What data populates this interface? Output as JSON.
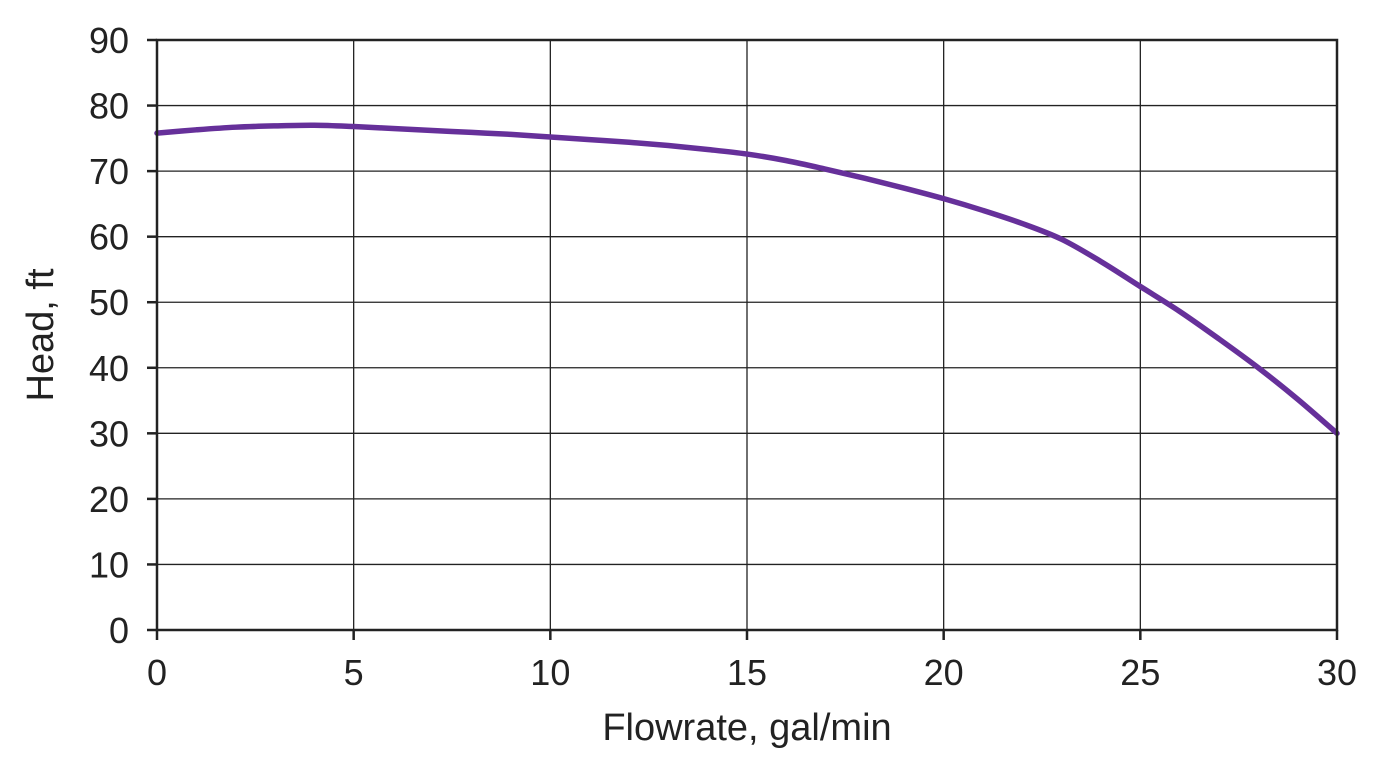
{
  "chart_data": {
    "type": "line",
    "xlabel": "Flowrate, gal/min",
    "ylabel": "Head, ft",
    "xlim": [
      0,
      30
    ],
    "ylim": [
      0,
      90
    ],
    "xticks": [
      0,
      5,
      10,
      15,
      20,
      25,
      30
    ],
    "yticks": [
      0,
      10,
      20,
      30,
      40,
      50,
      60,
      70,
      80,
      90
    ],
    "grid": true,
    "series": [
      {
        "color": "#66309a",
        "x": [
          0,
          1,
          2,
          3,
          4,
          5,
          6,
          7,
          8,
          9,
          10,
          11,
          12,
          13,
          14,
          15,
          16,
          17,
          18,
          19,
          20,
          21,
          22,
          23,
          24,
          25,
          26,
          27,
          28,
          29,
          30
        ],
        "y": [
          75.8,
          76.3,
          76.7,
          76.9,
          77.0,
          76.8,
          76.5,
          76.2,
          75.9,
          75.6,
          75.2,
          74.8,
          74.4,
          73.9,
          73.3,
          72.6,
          71.6,
          70.3,
          68.9,
          67.4,
          65.8,
          64.0,
          62.0,
          59.6,
          56.2,
          52.4,
          48.6,
          44.4,
          40.0,
          35.2,
          30.0
        ]
      }
    ]
  }
}
